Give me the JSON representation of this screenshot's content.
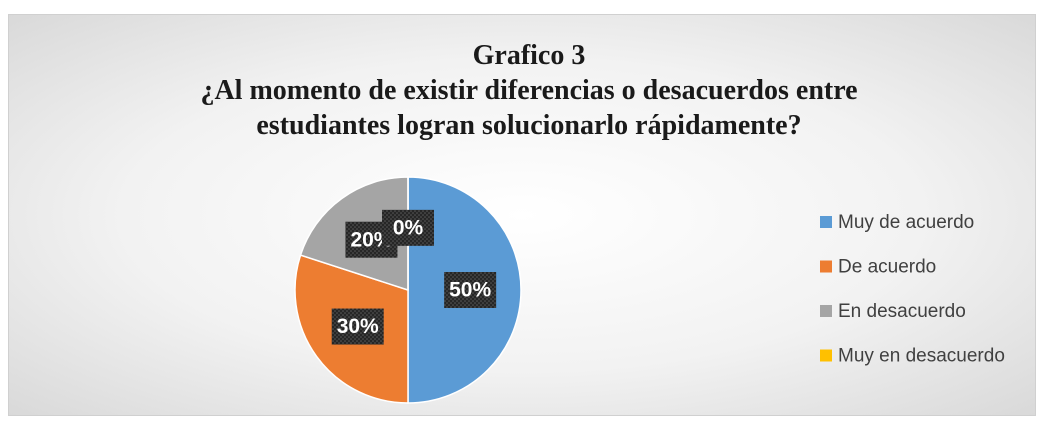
{
  "chart_data": {
    "type": "pie",
    "title": "Grafico 3",
    "subtitle": "¿Al momento de existir diferencias o desacuerdos entre estudiantes logran solucionarlo rápidamente?",
    "categories": [
      "Muy de acuerdo",
      "De acuerdo",
      "En desacuerdo",
      "Muy en desacuerdo"
    ],
    "values": [
      50,
      30,
      20,
      0
    ],
    "value_labels": [
      "50%",
      "30%",
      "20%",
      "0%"
    ],
    "colors": [
      "#5b9bd5",
      "#ed7d31",
      "#a5a5a5",
      "#ffc000"
    ],
    "legend": "right"
  }
}
